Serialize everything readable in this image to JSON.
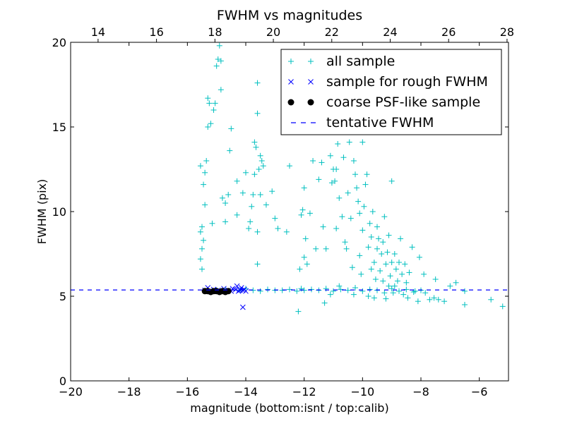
{
  "chart_data": {
    "type": "scatter",
    "title": "FWHM vs magnitudes",
    "xlabel": "magnitude (bottom:isnt / top:calib)",
    "ylabel": "FWHM (pix)",
    "xlim": [
      -20,
      -5
    ],
    "ylim": [
      0,
      20
    ],
    "top_xlim": [
      13.06,
      28.05
    ],
    "xticks": [
      -20,
      -18,
      -16,
      -14,
      -12,
      -10,
      -8,
      -6
    ],
    "xtick_labels": [
      "−20",
      "−18",
      "−16",
      "−14",
      "−12",
      "−10",
      "−8",
      "−6"
    ],
    "top_xticks": [
      14,
      16,
      18,
      20,
      22,
      24,
      26,
      28
    ],
    "top_xtick_labels": [
      "14",
      "16",
      "18",
      "20",
      "22",
      "24",
      "26",
      "28"
    ],
    "yticks": [
      0,
      5,
      10,
      15,
      20
    ],
    "ytick_labels": [
      "0",
      "5",
      "10",
      "15",
      "20"
    ],
    "grid": false,
    "legend_position": "top-right",
    "tentative_fwhm": 5.37,
    "series": [
      {
        "name": "all sample",
        "marker": "+",
        "color": "#00bfbf",
        "points": [
          [
            -15.5,
            6.6
          ],
          [
            -15.55,
            7.2
          ],
          [
            -15.5,
            7.8
          ],
          [
            -15.45,
            8.3
          ],
          [
            -15.55,
            8.8
          ],
          [
            -15.5,
            9.1
          ],
          [
            -15.4,
            10.4
          ],
          [
            -15.45,
            11.6
          ],
          [
            -15.4,
            12.3
          ],
          [
            -15.35,
            13.0
          ],
          [
            -15.55,
            12.7
          ],
          [
            -15.3,
            15.0
          ],
          [
            -15.25,
            16.4
          ],
          [
            -15.3,
            16.7
          ],
          [
            -15.1,
            16.0
          ],
          [
            -15.05,
            16.4
          ],
          [
            -15.2,
            15.2
          ],
          [
            -15.15,
            9.3
          ],
          [
            -15.0,
            18.6
          ],
          [
            -14.95,
            19.0
          ],
          [
            -14.85,
            18.9
          ],
          [
            -14.9,
            19.8
          ],
          [
            -14.85,
            17.2
          ],
          [
            -14.8,
            10.8
          ],
          [
            -14.7,
            10.5
          ],
          [
            -14.7,
            9.4
          ],
          [
            -14.6,
            11.0
          ],
          [
            -14.55,
            13.6
          ],
          [
            -14.5,
            14.9
          ],
          [
            -14.3,
            11.8
          ],
          [
            -14.3,
            9.8
          ],
          [
            -14.1,
            11.1
          ],
          [
            -14.0,
            12.3
          ],
          [
            -13.9,
            9.0
          ],
          [
            -13.85,
            9.4
          ],
          [
            -13.8,
            10.3
          ],
          [
            -13.75,
            11.0
          ],
          [
            -13.7,
            12.2
          ],
          [
            -13.7,
            14.1
          ],
          [
            -13.65,
            13.8
          ],
          [
            -13.6,
            15.8
          ],
          [
            -13.6,
            17.6
          ],
          [
            -13.55,
            12.5
          ],
          [
            -13.5,
            13.3
          ],
          [
            -13.45,
            13.0
          ],
          [
            -13.5,
            11.0
          ],
          [
            -13.4,
            12.7
          ],
          [
            -13.6,
            8.8
          ],
          [
            -13.6,
            6.9
          ],
          [
            -13.3,
            10.4
          ],
          [
            -13.1,
            11.2
          ],
          [
            -13.0,
            9.6
          ],
          [
            -12.9,
            9.0
          ],
          [
            -12.6,
            8.8
          ],
          [
            -12.5,
            12.7
          ],
          [
            -12.2,
            4.1
          ],
          [
            -12.15,
            6.6
          ],
          [
            -12.1,
            9.8
          ],
          [
            -12.05,
            10.1
          ],
          [
            -12.0,
            11.4
          ],
          [
            -12.0,
            7.3
          ],
          [
            -11.95,
            8.4
          ],
          [
            -11.9,
            6.9
          ],
          [
            -11.8,
            9.9
          ],
          [
            -11.7,
            13.0
          ],
          [
            -11.6,
            7.8
          ],
          [
            -11.5,
            11.9
          ],
          [
            -11.4,
            12.9
          ],
          [
            -11.35,
            9.1
          ],
          [
            -11.3,
            4.6
          ],
          [
            -11.25,
            7.8
          ],
          [
            -11.1,
            13.3
          ],
          [
            -11.05,
            11.7
          ],
          [
            -11.0,
            12.5
          ],
          [
            -10.95,
            11.8
          ],
          [
            -10.9,
            12.5
          ],
          [
            -10.9,
            9.0
          ],
          [
            -10.85,
            14.0
          ],
          [
            -10.8,
            10.8
          ],
          [
            -10.7,
            9.7
          ],
          [
            -10.65,
            13.2
          ],
          [
            -10.6,
            8.2
          ],
          [
            -10.55,
            7.8
          ],
          [
            -10.5,
            11.1
          ],
          [
            -10.45,
            14.1
          ],
          [
            -10.4,
            9.6
          ],
          [
            -10.35,
            6.7
          ],
          [
            -10.3,
            13.0
          ],
          [
            -10.25,
            12.2
          ],
          [
            -10.2,
            11.4
          ],
          [
            -10.15,
            10.6
          ],
          [
            -10.1,
            9.9
          ],
          [
            -10.1,
            7.4
          ],
          [
            -10.05,
            6.3
          ],
          [
            -10.0,
            14.1
          ],
          [
            -10.0,
            8.9
          ],
          [
            -9.95,
            10.3
          ],
          [
            -9.9,
            11.6
          ],
          [
            -9.85,
            12.2
          ],
          [
            -9.8,
            7.9
          ],
          [
            -9.75,
            9.3
          ],
          [
            -9.7,
            6.6
          ],
          [
            -9.7,
            8.5
          ],
          [
            -9.65,
            10.0
          ],
          [
            -9.6,
            7.0
          ],
          [
            -9.55,
            6.0
          ],
          [
            -9.5,
            9.1
          ],
          [
            -9.5,
            7.8
          ],
          [
            -9.45,
            8.4
          ],
          [
            -9.4,
            6.5
          ],
          [
            -9.35,
            7.5
          ],
          [
            -9.3,
            5.9
          ],
          [
            -9.3,
            8.2
          ],
          [
            -9.25,
            9.7
          ],
          [
            -9.2,
            6.9
          ],
          [
            -9.15,
            7.6
          ],
          [
            -9.1,
            5.6
          ],
          [
            -9.1,
            8.6
          ],
          [
            -9.05,
            6.2
          ],
          [
            -9.0,
            7.0
          ],
          [
            -9.0,
            11.8
          ],
          [
            -8.95,
            5.2
          ],
          [
            -8.9,
            7.5
          ],
          [
            -8.85,
            6.6
          ],
          [
            -8.8,
            5.9
          ],
          [
            -8.75,
            7.0
          ],
          [
            -8.7,
            8.4
          ],
          [
            -8.65,
            6.3
          ],
          [
            -8.6,
            5.1
          ],
          [
            -8.55,
            6.9
          ],
          [
            -8.5,
            5.8
          ],
          [
            -8.45,
            4.9
          ],
          [
            -8.4,
            6.4
          ],
          [
            -8.3,
            7.9
          ],
          [
            -8.2,
            5.3
          ],
          [
            -8.1,
            4.7
          ],
          [
            -8.05,
            7.3
          ],
          [
            -7.9,
            6.3
          ],
          [
            -7.85,
            5.2
          ],
          [
            -7.7,
            4.8
          ],
          [
            -7.55,
            4.9
          ],
          [
            -7.5,
            6.0
          ],
          [
            -7.4,
            4.8
          ],
          [
            -7.2,
            4.7
          ],
          [
            -7.0,
            5.6
          ],
          [
            -6.8,
            5.8
          ],
          [
            -6.5,
            5.3
          ],
          [
            -6.5,
            4.5
          ],
          [
            -5.6,
            4.8
          ],
          [
            -5.2,
            4.4
          ],
          [
            -15.0,
            5.35
          ],
          [
            -14.7,
            5.4
          ],
          [
            -14.2,
            5.35
          ],
          [
            -14.0,
            5.45
          ],
          [
            -13.75,
            5.35
          ],
          [
            -13.5,
            5.3
          ],
          [
            -13.25,
            5.4
          ],
          [
            -13.0,
            5.35
          ],
          [
            -12.75,
            5.35
          ],
          [
            -12.5,
            5.4
          ],
          [
            -12.25,
            5.3
          ],
          [
            -12.0,
            5.35
          ],
          [
            -11.75,
            5.4
          ],
          [
            -11.5,
            5.35
          ],
          [
            -11.25,
            5.45
          ],
          [
            -11.0,
            5.3
          ],
          [
            -10.75,
            5.4
          ],
          [
            -10.5,
            5.35
          ],
          [
            -10.25,
            5.5
          ],
          [
            -10.0,
            5.3
          ],
          [
            -9.75,
            5.4
          ],
          [
            -9.5,
            5.35
          ],
          [
            -9.25,
            5.2
          ],
          [
            -9.0,
            5.45
          ],
          [
            -8.75,
            5.3
          ],
          [
            -8.5,
            5.4
          ],
          [
            -8.25,
            5.25
          ],
          [
            -8.0,
            5.35
          ],
          [
            -10.3,
            5.1
          ],
          [
            -9.8,
            5.0
          ],
          [
            -9.6,
            4.9
          ],
          [
            -9.2,
            4.85
          ],
          [
            -8.9,
            5.6
          ],
          [
            -10.8,
            5.6
          ],
          [
            -11.1,
            5.1
          ],
          [
            -12.1,
            5.45
          ]
        ]
      },
      {
        "name": "sample for rough FWHM",
        "marker": "x",
        "color": "#0000ff",
        "points": [
          [
            -15.4,
            5.35
          ],
          [
            -15.3,
            5.5
          ],
          [
            -15.2,
            5.3
          ],
          [
            -15.1,
            5.4
          ],
          [
            -14.95,
            5.35
          ],
          [
            -14.85,
            5.3
          ],
          [
            -14.75,
            5.45
          ],
          [
            -14.6,
            5.35
          ],
          [
            -14.5,
            5.3
          ],
          [
            -14.45,
            5.45
          ],
          [
            -14.35,
            5.4
          ],
          [
            -14.3,
            5.6
          ],
          [
            -14.25,
            5.3
          ],
          [
            -14.2,
            5.35
          ],
          [
            -14.15,
            5.5
          ],
          [
            -14.1,
            5.35
          ],
          [
            -14.05,
            5.4
          ],
          [
            -14.0,
            5.3
          ],
          [
            -14.1,
            4.35
          ]
        ]
      },
      {
        "name": "coarse PSF-like sample",
        "marker": "o",
        "color": "#000000",
        "points": [
          [
            -15.4,
            5.3
          ],
          [
            -15.3,
            5.3
          ],
          [
            -15.2,
            5.25
          ],
          [
            -15.1,
            5.3
          ],
          [
            -15.0,
            5.3
          ],
          [
            -14.9,
            5.25
          ],
          [
            -14.8,
            5.3
          ],
          [
            -14.7,
            5.25
          ],
          [
            -14.6,
            5.3
          ]
        ]
      },
      {
        "name": "tentative FWHM",
        "marker": "--",
        "color": "#0000ff"
      }
    ]
  }
}
